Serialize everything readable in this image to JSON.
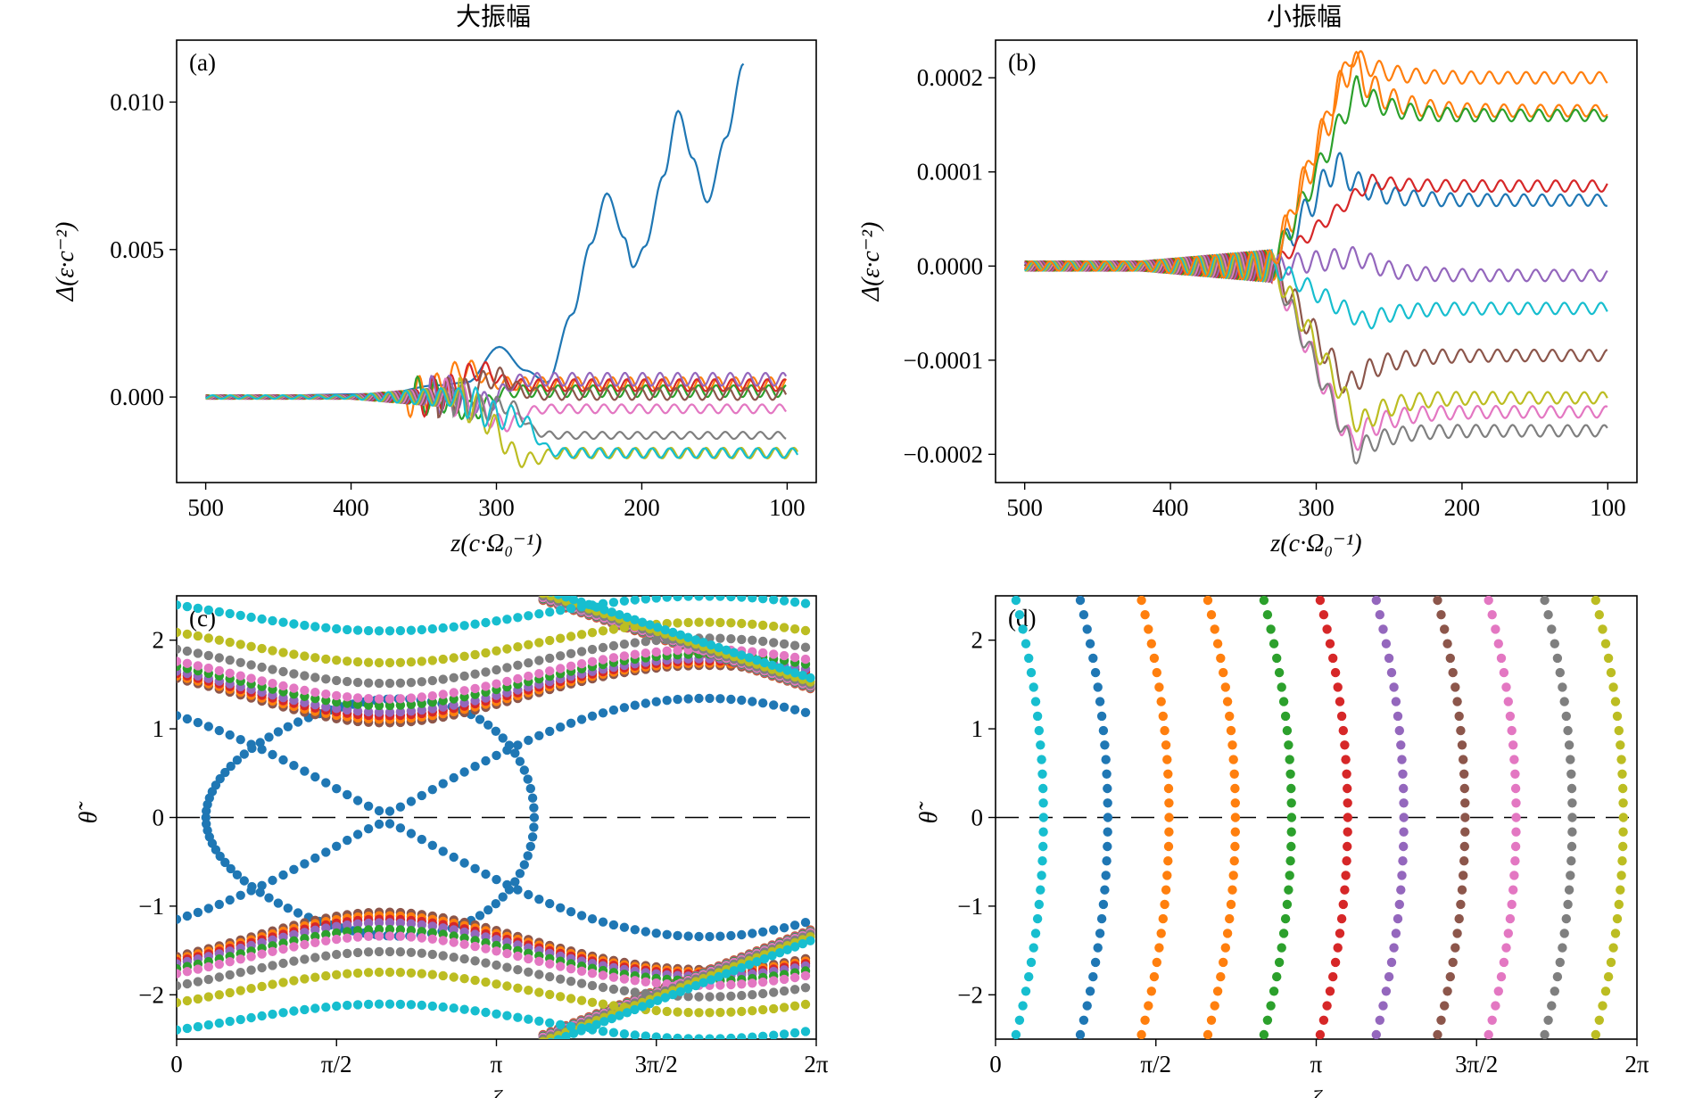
{
  "figure": {
    "top_titles": [
      "大振幅",
      "小振幅"
    ]
  },
  "chart_data": [
    {
      "panel": "(a)",
      "type": "line",
      "title": "大振幅",
      "xlabel": "z(c·Ω₀⁻¹)",
      "ylabel": "Δ(ε·c⁻²)",
      "xlim": [
        520,
        80
      ],
      "ylim": [
        -0.0029,
        0.0121
      ],
      "xticks": [
        500,
        400,
        300,
        200,
        100
      ],
      "xtick_labels": [
        "500",
        "400",
        "300",
        "200",
        "100"
      ],
      "yticks": [
        0.0,
        0.005,
        0.01
      ],
      "ytick_labels": [
        "0.000",
        "0.005",
        "0.010"
      ],
      "grid": false,
      "series": [
        {
          "color": "#1f77b4",
          "points": [
            [
              500,
              0
            ],
            [
              380,
              0.0001
            ],
            [
              340,
              0.0004
            ],
            [
              320,
              0.0005
            ],
            [
              298,
              0.0017
            ],
            [
              280,
              0.0009
            ],
            [
              265,
              0.0005
            ],
            [
              248,
              0.0028
            ],
            [
              235,
              0.0052
            ],
            [
              224,
              0.0069
            ],
            [
              212,
              0.0054
            ],
            [
              206,
              0.0044
            ],
            [
              198,
              0.0051
            ],
            [
              185,
              0.0075
            ],
            [
              175,
              0.0097
            ],
            [
              165,
              0.0081
            ],
            [
              155,
              0.0066
            ],
            [
              142,
              0.0088
            ],
            [
              130,
              0.0113
            ]
          ]
        },
        {
          "color": "#ff7f0e",
          "start": 362,
          "end": 100,
          "base": 0.00045,
          "amp": 0.00022
        },
        {
          "color": "#2ca02c",
          "start": 356,
          "end": 100,
          "base": 0.0002,
          "amp": 0.0002
        },
        {
          "color": "#d62728",
          "start": 352,
          "end": 100,
          "base": 0.0004,
          "amp": 0.0002
        },
        {
          "color": "#9467bd",
          "start": 346,
          "end": 100,
          "base": 0.0006,
          "amp": 0.00022
        },
        {
          "color": "#8c564b",
          "start": 340,
          "end": 100,
          "base": 0.0001,
          "amp": 0.0002
        },
        {
          "color": "#e377c2",
          "start": 336,
          "end": 100,
          "base": -0.0004,
          "amp": 0.00015
        },
        {
          "color": "#7f7f7f",
          "start": 330,
          "end": 100,
          "base": -0.0013,
          "amp": 0.00012
        },
        {
          "color": "#bcbd22",
          "start": 326,
          "end": 92,
          "base": -0.0019,
          "amp": 0.00018
        },
        {
          "color": "#17becf",
          "start": 322,
          "end": 92,
          "base": -0.0019,
          "amp": 0.00016
        }
      ]
    },
    {
      "panel": "(b)",
      "type": "line",
      "title": "小振幅",
      "xlabel": "z(c·Ω₀⁻¹)",
      "ylabel": "Δ(ε·c⁻²)",
      "xlim": [
        520,
        80
      ],
      "ylim": [
        -0.00023,
        0.00024
      ],
      "xticks": [
        500,
        400,
        300,
        200,
        100
      ],
      "xtick_labels": [
        "500",
        "400",
        "300",
        "200",
        "100"
      ],
      "yticks": [
        -0.0002,
        -0.0001,
        0.0,
        0.0001,
        0.0002
      ],
      "ytick_labels": [
        "−0.0002",
        "−0.0001",
        "0.0000",
        "0.0001",
        "0.0002"
      ],
      "grid": false,
      "series": [
        {
          "color": "#1f77b4",
          "final": 7e-05,
          "peak": 0.00011,
          "zpeak": 286
        },
        {
          "color": "#ff7f0e",
          "final": 0.000165,
          "peak": 0.00022,
          "zpeak": 276
        },
        {
          "color": "#2ca02c",
          "final": 0.00016,
          "peak": 0.00019,
          "zpeak": 272
        },
        {
          "color": "#d62728",
          "final": 8.5e-05,
          "peak": 9e-05,
          "zpeak": 262
        },
        {
          "color": "#9467bd",
          "final": -1e-05,
          "peak": 1e-05,
          "zpeak": 270
        },
        {
          "color": "#8c564b",
          "final": -9.5e-05,
          "peak": -0.00013,
          "zpeak": 278
        },
        {
          "color": "#e377c2",
          "final": -0.000155,
          "peak": -0.00019,
          "zpeak": 276
        },
        {
          "color": "#7f7f7f",
          "final": -0.000175,
          "peak": -0.0002,
          "zpeak": 274
        },
        {
          "color": "#bcbd22",
          "final": -0.00014,
          "peak": -0.00017,
          "zpeak": 270
        },
        {
          "color": "#17becf",
          "final": -4.5e-05,
          "peak": -6e-05,
          "zpeak": 266
        },
        {
          "color": "#ff7f0e",
          "final": 0.0002,
          "peak": 0.000225,
          "zpeak": 276
        }
      ]
    },
    {
      "panel": "(c)",
      "type": "scatter",
      "xlabel": "ζ",
      "ylabel": "θ̃",
      "xlim": [
        0,
        6.2832
      ],
      "ylim": [
        -2.5,
        2.5
      ],
      "xticks": [
        0,
        1.5708,
        3.1416,
        4.7124,
        6.2832
      ],
      "xtick_labels": [
        "0",
        "π/2",
        "π",
        "3π/2",
        "2π"
      ],
      "yticks": [
        -2,
        -1,
        0,
        1,
        2
      ],
      "ytick_labels": [
        "−2",
        "−1",
        "0",
        "1",
        "2"
      ],
      "hline": 0,
      "series": [
        {
          "color": "#1f77b4",
          "kind": "trapped",
          "K": 1.05
        },
        {
          "color": "#8c564b",
          "kind": "orbit",
          "K": 1.34
        },
        {
          "color": "#ff7f0e",
          "kind": "orbit",
          "K": 1.36
        },
        {
          "color": "#d62728",
          "kind": "orbit",
          "K": 1.38
        },
        {
          "color": "#9467bd",
          "kind": "orbit",
          "K": 1.4
        },
        {
          "color": "#2ca02c",
          "kind": "orbit",
          "K": 1.44
        },
        {
          "color": "#e377c2",
          "kind": "orbit",
          "K": 1.48
        },
        {
          "color": "#7f7f7f",
          "kind": "orbit",
          "K": 1.58
        },
        {
          "color": "#bcbd22",
          "kind": "orbit",
          "K": 1.72
        },
        {
          "color": "#17becf",
          "kind": "orbit",
          "K": 1.95
        }
      ]
    },
    {
      "panel": "(d)",
      "type": "scatter",
      "xlabel": "ζ",
      "ylabel": "θ̃",
      "xlim": [
        0,
        6.2832
      ],
      "ylim": [
        -2.5,
        2.5
      ],
      "xticks": [
        0,
        1.5708,
        3.1416,
        4.7124,
        6.2832
      ],
      "xtick_labels": [
        "0",
        "π/2",
        "π",
        "3π/2",
        "2π"
      ],
      "yticks": [
        -2,
        -1,
        0,
        1,
        2
      ],
      "ytick_labels": [
        "−2",
        "−1",
        "0",
        "1",
        "2"
      ],
      "hline": 0,
      "series": [
        {
          "color": "#17becf",
          "zeta0": 0.47
        },
        {
          "color": "#1f77b4",
          "zeta0": 1.1
        },
        {
          "color": "#ff7f0e",
          "zeta0": 1.7
        },
        {
          "color": "#ff7f0e",
          "zeta0": 2.35
        },
        {
          "color": "#2ca02c",
          "zeta0": 2.9
        },
        {
          "color": "#d62728",
          "zeta0": 3.45
        },
        {
          "color": "#9467bd",
          "zeta0": 4.0
        },
        {
          "color": "#8c564b",
          "zeta0": 4.6
        },
        {
          "color": "#e377c2",
          "zeta0": 5.1
        },
        {
          "color": "#7f7f7f",
          "zeta0": 5.65
        },
        {
          "color": "#bcbd22",
          "zeta0": 6.15
        }
      ]
    }
  ]
}
